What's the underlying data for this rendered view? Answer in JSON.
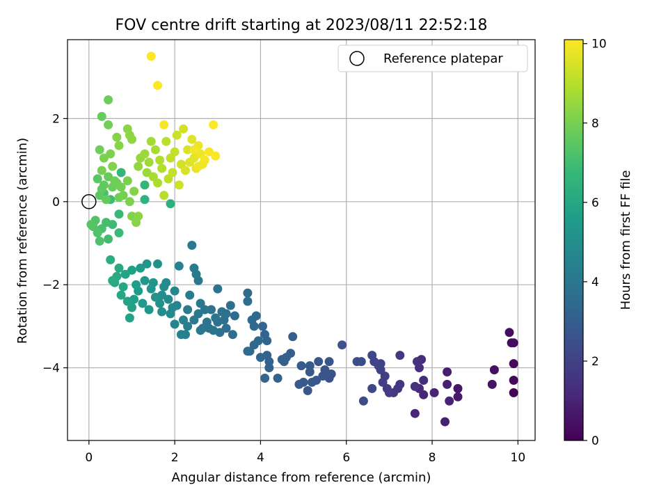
{
  "chart_data": {
    "type": "scatter",
    "title": "FOV centre drift starting at 2023/08/11 22:52:18",
    "xlabel": "Angular distance from reference (arcmin)",
    "ylabel": "Rotation from reference (arcmin)",
    "xlim": [
      -0.5,
      10.4
    ],
    "ylim": [
      -5.75,
      3.9
    ],
    "x_ticks": [
      0,
      2,
      4,
      6,
      8,
      10
    ],
    "y_ticks": [
      -4,
      -2,
      0,
      2
    ],
    "x_tick_labels": [
      "0",
      "2",
      "4",
      "6",
      "8",
      "10"
    ],
    "y_tick_labels": [
      "−4",
      "−2",
      "0",
      "2"
    ],
    "grid": true,
    "legend": {
      "position": "top-right",
      "entries": [
        "Reference platepar"
      ]
    },
    "reference_point": {
      "x": 0,
      "y": 0
    },
    "colorbar": {
      "label": "Hours from first FF file",
      "range": [
        0,
        10.1
      ],
      "ticks": [
        0,
        2,
        4,
        6,
        8,
        10
      ],
      "tick_labels": [
        "0",
        "2",
        "4",
        "6",
        "8",
        "10"
      ],
      "colormap": "viridis"
    },
    "colormap_stops": [
      "#440154",
      "#482878",
      "#3e4989",
      "#31688e",
      "#26828e",
      "#1f9e89",
      "#35b779",
      "#6ece58",
      "#b5de2b",
      "#fde725"
    ],
    "series": [
      {
        "points": [
          [
            9.9,
            -4.6,
            0.1
          ],
          [
            9.9,
            -4.3,
            0.2
          ],
          [
            9.9,
            -3.9,
            0.25
          ],
          [
            9.85,
            -3.4,
            0.3
          ],
          [
            9.8,
            -3.15,
            0.35
          ],
          [
            9.9,
            -3.4,
            0.3
          ],
          [
            9.45,
            -4.05,
            0.4
          ],
          [
            9.4,
            -4.4,
            0.5
          ],
          [
            8.6,
            -4.5,
            0.6
          ],
          [
            8.6,
            -4.7,
            0.7
          ],
          [
            8.35,
            -4.1,
            0.8
          ],
          [
            8.35,
            -4.4,
            0.9
          ],
          [
            8.4,
            -4.8,
            1.0
          ],
          [
            8.3,
            -5.3,
            0.9
          ],
          [
            8.05,
            -4.6,
            1.0
          ],
          [
            7.8,
            -4.65,
            1.1
          ],
          [
            7.7,
            -4.5,
            1.2
          ],
          [
            7.8,
            -4.3,
            1.3
          ],
          [
            7.75,
            -3.8,
            1.3
          ],
          [
            7.7,
            -4.0,
            1.4
          ],
          [
            7.65,
            -3.85,
            1.5
          ],
          [
            7.6,
            -4.45,
            1.5
          ],
          [
            7.6,
            -5.1,
            1.1
          ],
          [
            7.25,
            -4.4,
            1.6
          ],
          [
            7.25,
            -3.7,
            1.7
          ],
          [
            7.2,
            -4.5,
            1.6
          ],
          [
            7.1,
            -4.6,
            1.7
          ],
          [
            7.0,
            -4.6,
            1.8
          ],
          [
            6.95,
            -4.5,
            1.8
          ],
          [
            6.9,
            -4.2,
            1.9
          ],
          [
            6.85,
            -4.35,
            1.9
          ],
          [
            6.8,
            -4.05,
            2.0
          ],
          [
            6.8,
            -3.9,
            2.0
          ],
          [
            6.75,
            -3.95,
            2.1
          ],
          [
            6.65,
            -3.85,
            2.1
          ],
          [
            6.6,
            -4.5,
            2.2
          ],
          [
            6.6,
            -3.7,
            2.2
          ],
          [
            6.4,
            -4.8,
            2.3
          ],
          [
            6.35,
            -3.85,
            2.4
          ],
          [
            6.25,
            -3.85,
            2.4
          ],
          [
            5.9,
            -3.45,
            2.6
          ],
          [
            5.65,
            -4.15,
            2.6
          ],
          [
            5.6,
            -4.25,
            2.6
          ],
          [
            5.6,
            -3.85,
            2.7
          ],
          [
            5.5,
            -4.05,
            2.7
          ],
          [
            5.45,
            -4.2,
            2.7
          ],
          [
            5.35,
            -3.85,
            2.7
          ],
          [
            5.3,
            -4.3,
            2.75
          ],
          [
            5.2,
            -4.35,
            2.8
          ],
          [
            5.15,
            -4.1,
            2.8
          ],
          [
            5.15,
            -3.95,
            2.85
          ],
          [
            5.1,
            -4.55,
            2.8
          ],
          [
            5.0,
            -4.35,
            2.85
          ],
          [
            4.95,
            -3.95,
            2.9
          ],
          [
            4.9,
            -4.4,
            2.9
          ],
          [
            4.75,
            -3.25,
            3.0
          ],
          [
            4.7,
            -3.65,
            3.0
          ],
          [
            4.6,
            -3.75,
            3.05
          ],
          [
            4.55,
            -3.85,
            3.1
          ],
          [
            4.5,
            -3.8,
            3.1
          ],
          [
            4.4,
            -4.25,
            3.15
          ],
          [
            4.2,
            -3.85,
            3.2
          ],
          [
            4.2,
            -4.0,
            3.2
          ],
          [
            4.15,
            -3.7,
            3.2
          ],
          [
            4.15,
            -3.35,
            3.25
          ],
          [
            4.1,
            -3.2,
            3.25
          ],
          [
            4.1,
            -4.25,
            3.3
          ],
          [
            4.05,
            -3.0,
            3.3
          ],
          [
            4.0,
            -3.75,
            3.3
          ],
          [
            3.95,
            -3.35,
            3.35
          ],
          [
            3.9,
            -2.75,
            3.4
          ],
          [
            3.85,
            -3.45,
            3.4
          ],
          [
            3.85,
            -3.0,
            3.4
          ],
          [
            3.8,
            -2.85,
            3.45
          ],
          [
            3.75,
            -3.6,
            3.5
          ],
          [
            3.7,
            -2.2,
            3.5
          ],
          [
            3.7,
            -2.4,
            3.55
          ],
          [
            3.7,
            -3.6,
            3.55
          ],
          [
            3.4,
            -2.75,
            3.6
          ],
          [
            3.35,
            -3.2,
            3.6
          ],
          [
            3.3,
            -2.5,
            3.65
          ],
          [
            3.2,
            -2.7,
            3.7
          ],
          [
            3.2,
            -3.05,
            3.7
          ],
          [
            3.15,
            -2.85,
            3.7
          ],
          [
            3.1,
            -2.65,
            3.75
          ],
          [
            3.05,
            -3.15,
            3.75
          ],
          [
            3.0,
            -2.9,
            3.8
          ],
          [
            3.0,
            -2.1,
            3.8
          ],
          [
            2.95,
            -2.8,
            3.85
          ],
          [
            2.9,
            -3.1,
            3.85
          ],
          [
            2.85,
            -2.6,
            3.9
          ],
          [
            2.8,
            -3.05,
            3.9
          ],
          [
            2.75,
            -2.9,
            3.95
          ],
          [
            2.7,
            -2.6,
            3.95
          ],
          [
            2.65,
            -3.05,
            4.0
          ],
          [
            2.6,
            -3.1,
            4.0
          ],
          [
            2.6,
            -2.45,
            4.0
          ],
          [
            2.55,
            -2.7,
            4.05
          ],
          [
            2.55,
            -1.9,
            4.05
          ],
          [
            2.5,
            -1.75,
            4.1
          ],
          [
            2.45,
            -2.85,
            4.1
          ],
          [
            2.45,
            -1.6,
            4.1
          ],
          [
            2.4,
            -1.05,
            4.15
          ],
          [
            2.35,
            -2.25,
            4.2
          ],
          [
            2.3,
            -2.6,
            4.25
          ],
          [
            2.3,
            -3.0,
            4.3
          ],
          [
            2.25,
            -3.2,
            4.35
          ],
          [
            2.2,
            -2.85,
            4.4
          ],
          [
            2.15,
            -3.2,
            4.45
          ],
          [
            2.1,
            -1.55,
            4.5
          ],
          [
            2.05,
            -2.5,
            4.55
          ],
          [
            2.0,
            -2.95,
            4.6
          ],
          [
            2.0,
            -2.15,
            4.65
          ],
          [
            1.95,
            -2.55,
            4.7
          ],
          [
            1.9,
            -2.7,
            4.75
          ],
          [
            1.85,
            -2.35,
            4.8
          ],
          [
            1.8,
            -1.95,
            4.85
          ],
          [
            1.75,
            -2.05,
            4.9
          ],
          [
            1.7,
            -2.65,
            4.95
          ],
          [
            1.7,
            -2.25,
            5.0
          ],
          [
            1.65,
            -2.45,
            5.05
          ],
          [
            1.6,
            -1.5,
            5.1
          ],
          [
            1.55,
            -2.3,
            5.15
          ],
          [
            1.5,
            -1.95,
            5.2
          ],
          [
            1.45,
            -2.1,
            5.25
          ],
          [
            1.4,
            -2.6,
            5.3
          ],
          [
            1.35,
            -1.5,
            5.35
          ],
          [
            1.3,
            -1.9,
            5.4
          ],
          [
            1.25,
            -2.45,
            5.45
          ],
          [
            1.2,
            -1.6,
            5.5
          ],
          [
            1.15,
            -2.15,
            5.55
          ],
          [
            1.1,
            -2.0,
            5.6
          ],
          [
            1.05,
            -2.35,
            5.65
          ],
          [
            1.0,
            -1.65,
            5.7
          ],
          [
            1.0,
            -2.55,
            5.75
          ],
          [
            0.95,
            -2.8,
            5.8
          ],
          [
            0.9,
            -2.4,
            5.85
          ],
          [
            0.85,
            -1.75,
            5.9
          ],
          [
            0.8,
            -2.05,
            5.95
          ],
          [
            0.75,
            -2.25,
            6.0
          ],
          [
            0.7,
            -1.6,
            6.05
          ],
          [
            0.65,
            -1.8,
            6.1
          ],
          [
            0.6,
            -1.95,
            6.15
          ],
          [
            0.55,
            -1.9,
            6.2
          ],
          [
            0.5,
            -1.4,
            6.3
          ],
          [
            1.9,
            -0.05,
            6.4
          ],
          [
            1.3,
            0.05,
            6.5
          ],
          [
            1.3,
            0.4,
            6.6
          ],
          [
            0.75,
            0.7,
            6.7
          ],
          [
            0.7,
            -0.3,
            6.8
          ],
          [
            0.7,
            -0.75,
            6.85
          ],
          [
            0.55,
            -0.55,
            6.9
          ],
          [
            0.5,
            0.05,
            6.95
          ],
          [
            0.45,
            -0.9,
            7.0
          ],
          [
            0.4,
            -0.5,
            7.05
          ],
          [
            0.35,
            0.2,
            7.1
          ],
          [
            0.3,
            -0.65,
            7.15
          ],
          [
            0.25,
            -0.95,
            7.2
          ],
          [
            0.2,
            -0.75,
            7.25
          ],
          [
            0.15,
            -0.45,
            7.3
          ],
          [
            0.1,
            -0.6,
            7.35
          ],
          [
            0.05,
            -0.55,
            7.4
          ],
          [
            0.2,
            0.55,
            7.45
          ],
          [
            0.25,
            0.15,
            7.5
          ],
          [
            0.3,
            0.3,
            7.55
          ],
          [
            0.35,
            0.4,
            7.6
          ],
          [
            0.4,
            0.05,
            7.65
          ],
          [
            0.45,
            0.6,
            7.7
          ],
          [
            0.55,
            0.35,
            7.75
          ],
          [
            0.6,
            0.5,
            7.8
          ],
          [
            0.65,
            0.45,
            7.85
          ],
          [
            0.7,
            0.1,
            7.9
          ],
          [
            0.75,
            0.35,
            7.95
          ],
          [
            0.8,
            0.15,
            8.0
          ],
          [
            0.9,
            0.5,
            8.05
          ],
          [
            0.95,
            0.0,
            8.1
          ],
          [
            1.0,
            -0.35,
            8.15
          ],
          [
            1.05,
            0.25,
            8.2
          ],
          [
            1.1,
            -0.5,
            8.25
          ],
          [
            1.15,
            -0.35,
            8.3
          ],
          [
            0.3,
            2.05,
            7.7
          ],
          [
            0.45,
            2.45,
            7.8
          ],
          [
            0.45,
            1.85,
            7.9
          ],
          [
            0.25,
            1.25,
            7.85
          ],
          [
            0.3,
            0.75,
            8.0
          ],
          [
            0.35,
            1.05,
            8.05
          ],
          [
            0.5,
            1.15,
            8.1
          ],
          [
            0.55,
            0.85,
            8.15
          ],
          [
            0.65,
            1.55,
            8.2
          ],
          [
            0.7,
            1.35,
            8.25
          ],
          [
            0.9,
            1.75,
            8.3
          ],
          [
            0.95,
            1.6,
            8.35
          ],
          [
            1.0,
            1.5,
            8.4
          ],
          [
            1.15,
            0.85,
            8.45
          ],
          [
            1.2,
            1.05,
            8.5
          ],
          [
            1.3,
            1.15,
            8.55
          ],
          [
            1.35,
            0.7,
            8.6
          ],
          [
            1.4,
            0.95,
            8.65
          ],
          [
            1.45,
            1.45,
            8.7
          ],
          [
            1.5,
            0.6,
            8.75
          ],
          [
            1.55,
            1.25,
            8.8
          ],
          [
            1.6,
            0.45,
            8.85
          ],
          [
            1.65,
            1.0,
            8.9
          ],
          [
            1.7,
            0.8,
            8.95
          ],
          [
            1.75,
            0.15,
            9.0
          ],
          [
            1.8,
            1.45,
            9.05
          ],
          [
            1.85,
            0.55,
            9.1
          ],
          [
            1.9,
            1.05,
            9.15
          ],
          [
            1.95,
            0.7,
            9.2
          ],
          [
            2.0,
            1.2,
            9.25
          ],
          [
            2.05,
            1.6,
            9.3
          ],
          [
            2.1,
            0.4,
            9.35
          ],
          [
            2.15,
            0.9,
            9.4
          ],
          [
            2.2,
            1.75,
            9.45
          ],
          [
            2.25,
            0.75,
            9.5
          ],
          [
            2.3,
            1.25,
            9.55
          ],
          [
            2.35,
            0.95,
            9.6
          ],
          [
            2.4,
            1.5,
            9.65
          ],
          [
            2.45,
            1.05,
            9.7
          ],
          [
            2.5,
            0.8,
            9.75
          ],
          [
            2.55,
            1.35,
            9.8
          ],
          [
            2.6,
            1.15,
            9.85
          ],
          [
            2.65,
            0.9,
            9.9
          ],
          [
            2.7,
            1.0,
            9.95
          ],
          [
            2.8,
            1.2,
            10.0
          ],
          [
            2.9,
            1.85,
            10.05
          ],
          [
            2.95,
            1.1,
            10.05
          ],
          [
            1.75,
            1.85,
            10.0
          ],
          [
            1.6,
            2.8,
            10.05
          ],
          [
            1.45,
            3.5,
            10.1
          ],
          [
            2.55,
            0.85,
            9.9
          ],
          [
            2.45,
            1.25,
            9.95
          ]
        ]
      }
    ]
  }
}
